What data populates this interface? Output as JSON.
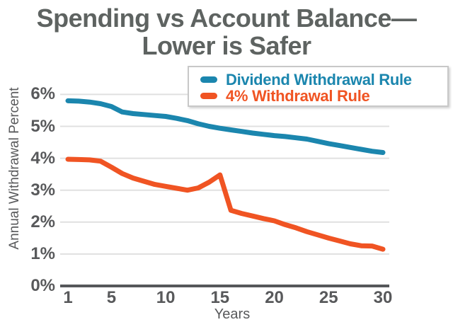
{
  "title": {
    "line1": "Spending vs Account Balance—",
    "line2": "Lower is Safer"
  },
  "colors": {
    "blue": "#1b86ae",
    "orange": "#f05423",
    "title_text": "#5e6361",
    "axis_text": "#58595b",
    "gridline": "#e0e0e0",
    "axis_line": "#55575a",
    "legend_border": "#c8c8c8",
    "background": "#ffffff"
  },
  "legend": {
    "items": [
      {
        "label": "Dividend Withdrawal Rule",
        "color": "#1b86ae"
      },
      {
        "label": "4% Withdrawal Rule",
        "color": "#f05423"
      }
    ]
  },
  "chart_data": {
    "type": "line",
    "title": "Spending vs Account Balance—Lower is Safer",
    "xlabel": "Years",
    "ylabel": "Annual Withdrawal Percent",
    "x_ticks": [
      1,
      5,
      10,
      15,
      20,
      25,
      30
    ],
    "y_ticks": [
      "6%",
      "5%",
      "4%",
      "3%",
      "2%",
      "1%",
      "0%"
    ],
    "xlim": [
      1,
      30
    ],
    "ylim": [
      0,
      6
    ],
    "grid": true,
    "legend_position": "top-right",
    "x": [
      1,
      2,
      3,
      4,
      5,
      6,
      7,
      8,
      9,
      10,
      11,
      12,
      13,
      14,
      15,
      16,
      17,
      18,
      19,
      20,
      21,
      22,
      23,
      24,
      25,
      26,
      27,
      28,
      29,
      30
    ],
    "series": [
      {
        "name": "Dividend Withdrawal Rule",
        "color": "#1b86ae",
        "values": [
          5.8,
          5.79,
          5.76,
          5.71,
          5.62,
          5.45,
          5.4,
          5.37,
          5.34,
          5.31,
          5.25,
          5.18,
          5.08,
          5.0,
          4.94,
          4.89,
          4.84,
          4.79,
          4.75,
          4.71,
          4.68,
          4.64,
          4.6,
          4.53,
          4.46,
          4.4,
          4.34,
          4.28,
          4.22,
          4.18
        ]
      },
      {
        "name": "4% Withdrawal Rule",
        "color": "#f05423",
        "values": [
          3.97,
          3.96,
          3.95,
          3.91,
          3.72,
          3.52,
          3.38,
          3.28,
          3.18,
          3.12,
          3.06,
          3.0,
          3.07,
          3.25,
          3.48,
          2.37,
          2.27,
          2.19,
          2.11,
          2.04,
          1.92,
          1.82,
          1.7,
          1.6,
          1.5,
          1.41,
          1.32,
          1.26,
          1.25,
          1.15
        ]
      }
    ]
  }
}
